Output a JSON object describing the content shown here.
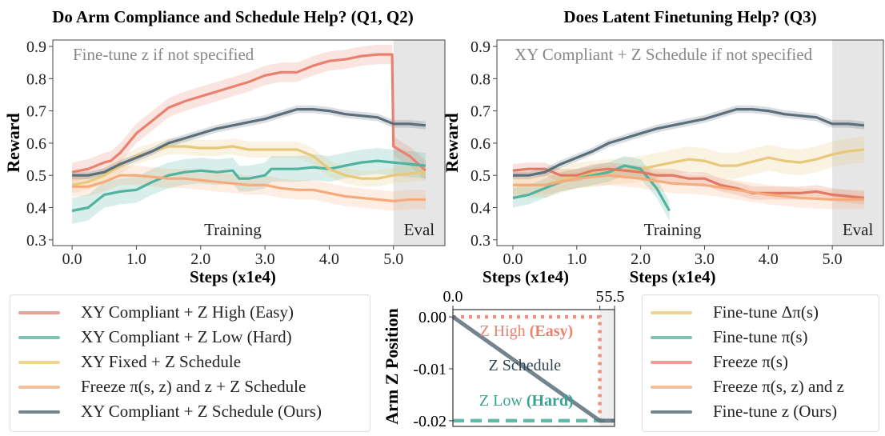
{
  "chart_data": [
    {
      "type": "line",
      "title": "Do Arm Compliance and Schedule Help? (Q1, Q2)",
      "xlabel": "Steps (x1e4)",
      "ylabel": "Reward",
      "xlim": [
        -0.3,
        5.8
      ],
      "ylim": [
        0.23,
        0.92
      ],
      "xticks": [
        "0.0",
        "1.0",
        "2.0",
        "3.0",
        "4.0",
        "5.0"
      ],
      "yticks": [
        "0.3",
        "0.4",
        "0.5",
        "0.6",
        "0.7",
        "0.8",
        "0.9"
      ],
      "annotation": "Fine-tune z if not specified",
      "region_labels": {
        "training": "Training",
        "eval": "Eval"
      },
      "eval_region": [
        5.0,
        5.8
      ],
      "grid": false,
      "series": [
        {
          "name": "XY Compliant + Z High (Easy)",
          "color": "#e8826f",
          "band": 0.03,
          "x": [
            0,
            0.25,
            0.5,
            0.6,
            0.75,
            1.0,
            1.25,
            1.5,
            1.75,
            2.0,
            2.25,
            2.5,
            2.75,
            3.0,
            3.25,
            3.5,
            3.75,
            4.0,
            4.25,
            4.5,
            4.75,
            4.98,
            5.0,
            5.25,
            5.5
          ],
          "y": [
            0.51,
            0.52,
            0.54,
            0.545,
            0.57,
            0.63,
            0.67,
            0.71,
            0.73,
            0.745,
            0.76,
            0.775,
            0.79,
            0.81,
            0.82,
            0.82,
            0.84,
            0.855,
            0.86,
            0.87,
            0.875,
            0.875,
            0.59,
            0.56,
            0.515
          ]
        },
        {
          "name": "XY Compliant + Z Low (Hard)",
          "color": "#4fb3a0",
          "band": 0.04,
          "x": [
            0,
            0.25,
            0.5,
            0.75,
            1.0,
            1.25,
            1.5,
            1.75,
            2.0,
            2.25,
            2.5,
            2.6,
            2.75,
            3.0,
            3.1,
            3.5,
            3.75,
            4.0,
            4.25,
            4.5,
            4.75,
            5.0,
            5.25,
            5.5
          ],
          "y": [
            0.39,
            0.4,
            0.44,
            0.45,
            0.455,
            0.48,
            0.5,
            0.51,
            0.515,
            0.51,
            0.515,
            0.49,
            0.49,
            0.5,
            0.52,
            0.52,
            0.525,
            0.52,
            0.53,
            0.54,
            0.545,
            0.54,
            0.535,
            0.53
          ]
        },
        {
          "name": "XY Fixed + Z Schedule",
          "color": "#e8c97c",
          "band": 0.025,
          "x": [
            0,
            0.25,
            0.5,
            0.75,
            1.0,
            1.25,
            1.5,
            1.75,
            2.0,
            2.25,
            2.5,
            2.75,
            3.0,
            3.25,
            3.5,
            3.75,
            4.0,
            4.25,
            4.5,
            4.75,
            5.0,
            5.25,
            5.5
          ],
          "y": [
            0.47,
            0.48,
            0.5,
            0.53,
            0.56,
            0.575,
            0.59,
            0.59,
            0.585,
            0.585,
            0.59,
            0.58,
            0.58,
            0.58,
            0.58,
            0.56,
            0.52,
            0.5,
            0.49,
            0.49,
            0.5,
            0.505,
            0.51
          ]
        },
        {
          "name": "Freeze π(s, z) and z + Z Schedule",
          "color": "#f5ab7c",
          "band": 0.03,
          "x": [
            0,
            0.25,
            0.5,
            0.75,
            1.0,
            1.25,
            1.5,
            1.75,
            2.0,
            2.25,
            2.5,
            2.75,
            3.0,
            3.25,
            3.5,
            3.75,
            4.0,
            4.25,
            4.5,
            4.75,
            5.0,
            5.25,
            5.5
          ],
          "y": [
            0.465,
            0.465,
            0.48,
            0.5,
            0.5,
            0.495,
            0.49,
            0.49,
            0.485,
            0.48,
            0.475,
            0.47,
            0.47,
            0.46,
            0.455,
            0.455,
            0.445,
            0.435,
            0.43,
            0.425,
            0.42,
            0.425,
            0.425
          ]
        },
        {
          "name": "XY Compliant + Z Schedule (Ours)",
          "color": "#5b6f7a",
          "band": 0.012,
          "x": [
            0,
            0.25,
            0.5,
            0.75,
            1.0,
            1.25,
            1.5,
            1.75,
            2.0,
            2.25,
            2.5,
            2.75,
            3.0,
            3.25,
            3.5,
            3.75,
            4.0,
            4.25,
            4.5,
            4.75,
            5.0,
            5.25,
            5.5
          ],
          "y": [
            0.5,
            0.5,
            0.51,
            0.535,
            0.555,
            0.575,
            0.6,
            0.615,
            0.63,
            0.645,
            0.655,
            0.665,
            0.675,
            0.69,
            0.705,
            0.705,
            0.7,
            0.69,
            0.685,
            0.68,
            0.66,
            0.66,
            0.655
          ]
        }
      ]
    },
    {
      "type": "line",
      "title": "Does Latent Finetuning Help? (Q3)",
      "xlabel": "Steps (x1e4)",
      "ylabel": "Reward",
      "xlim": [
        -0.25,
        5.8
      ],
      "ylim": [
        0.23,
        0.92
      ],
      "xticks": [
        "0.0",
        "1.0",
        "2.0",
        "3.0",
        "4.0",
        "5.0"
      ],
      "yticks": [
        "0.3",
        "0.4",
        "0.5",
        "0.6",
        "0.7",
        "0.8",
        "0.9"
      ],
      "annotation": "XY Compliant + Z Schedule if not specified",
      "region_labels": {
        "training": "Training",
        "eval": "Eval"
      },
      "eval_region": [
        5.0,
        5.8
      ],
      "grid": false,
      "series": [
        {
          "name": "Fine-tune Δπ(s)",
          "color": "#e8c97c",
          "band": 0.04,
          "x": [
            0,
            0.5,
            1.0,
            1.5,
            2.0,
            2.5,
            2.75,
            3.0,
            3.25,
            3.5,
            4.0,
            4.25,
            4.5,
            4.75,
            5.0,
            5.25,
            5.5
          ],
          "y": [
            0.47,
            0.47,
            0.5,
            0.51,
            0.52,
            0.54,
            0.55,
            0.545,
            0.53,
            0.53,
            0.555,
            0.545,
            0.54,
            0.55,
            0.565,
            0.575,
            0.58
          ]
        },
        {
          "name": "Fine-tune π(s)",
          "color": "#4fb3a0",
          "band": 0.03,
          "x": [
            0,
            0.25,
            0.5,
            0.75,
            1.0,
            1.25,
            1.5,
            1.75,
            2.0,
            2.25,
            2.45
          ],
          "y": [
            0.43,
            0.44,
            0.46,
            0.48,
            0.49,
            0.5,
            0.51,
            0.53,
            0.52,
            0.46,
            0.39
          ]
        },
        {
          "name": "Freeze π(s)",
          "color": "#e07a64",
          "band": 0.02,
          "x": [
            0,
            0.25,
            0.5,
            0.75,
            1.0,
            1.25,
            1.5,
            1.75,
            2.0,
            2.25,
            2.5,
            2.75,
            3.0,
            3.25,
            3.5,
            3.75,
            4.0,
            4.25,
            4.5,
            4.75,
            5.0,
            5.25,
            5.5
          ],
          "y": [
            0.515,
            0.52,
            0.52,
            0.5,
            0.5,
            0.515,
            0.52,
            0.515,
            0.51,
            0.5,
            0.5,
            0.49,
            0.49,
            0.47,
            0.46,
            0.445,
            0.445,
            0.445,
            0.445,
            0.45,
            0.44,
            0.435,
            0.43
          ]
        },
        {
          "name": "Freeze π(s, z) and z",
          "color": "#f5ab7c",
          "band": 0.03,
          "x": [
            0,
            0.5,
            1.0,
            1.5,
            2.0,
            2.5,
            3.0,
            3.5,
            4.0,
            4.5,
            5.0,
            5.25,
            5.5
          ],
          "y": [
            0.47,
            0.47,
            0.49,
            0.5,
            0.49,
            0.475,
            0.47,
            0.455,
            0.44,
            0.43,
            0.425,
            0.425,
            0.425
          ]
        },
        {
          "name": "Fine-tune z (Ours)",
          "color": "#5b6f7a",
          "band": 0.012,
          "x": [
            0,
            0.25,
            0.5,
            0.75,
            1.0,
            1.25,
            1.5,
            1.75,
            2.0,
            2.25,
            2.5,
            2.75,
            3.0,
            3.25,
            3.5,
            3.75,
            4.0,
            4.25,
            4.5,
            4.75,
            5.0,
            5.25,
            5.5
          ],
          "y": [
            0.5,
            0.5,
            0.51,
            0.535,
            0.555,
            0.575,
            0.6,
            0.615,
            0.63,
            0.645,
            0.655,
            0.665,
            0.675,
            0.69,
            0.705,
            0.705,
            0.7,
            0.69,
            0.685,
            0.68,
            0.66,
            0.66,
            0.655
          ]
        }
      ]
    },
    {
      "type": "line",
      "title": "",
      "xlabel": "Steps (x1e4)",
      "ylabel": "Arm Z Position",
      "xlim": [
        0,
        5.5
      ],
      "ylim": [
        -0.0211,
        0.0014
      ],
      "xticks": [
        "0.0",
        "5",
        "5.5"
      ],
      "xtick_values": [
        0,
        5,
        5.5
      ],
      "yticks": [
        "0.00",
        "-0.01",
        "-0.02"
      ],
      "ytick_values": [
        0,
        -0.01,
        -0.02
      ],
      "eval_region": [
        5.0,
        5.5
      ],
      "grid": false,
      "series": [
        {
          "name": "Z High (Easy)",
          "color": "#e8927f",
          "style": "dotted",
          "x": [
            0,
            5,
            5
          ],
          "y": [
            0,
            0,
            -0.02
          ]
        },
        {
          "name": "Z Low (Hard)",
          "color": "#5fbaa6",
          "style": "dashed",
          "x": [
            0,
            5.5
          ],
          "y": [
            -0.02,
            -0.02
          ]
        },
        {
          "name": "Z Schedule",
          "color": "#5b6f7a",
          "style": "solid",
          "x": [
            0,
            5,
            5.5
          ],
          "y": [
            0,
            -0.02,
            -0.02
          ]
        }
      ],
      "labels": [
        {
          "text": "Z High ",
          "bold": "(Easy)",
          "color": "#e8826f"
        },
        {
          "text": "Z Schedule",
          "bold": "",
          "color": "#2f4450"
        },
        {
          "text": "Z Low ",
          "bold": "(Hard)",
          "color": "#3aa38f"
        }
      ]
    }
  ],
  "legends": {
    "left": [
      {
        "label": "XY Compliant + Z High (Easy)",
        "color": "#e8a096"
      },
      {
        "label": "XY Compliant + Z Low (Hard)",
        "color": "#7cc4b4"
      },
      {
        "label": "XY Fixed + Z Schedule",
        "color": "#ecd690"
      },
      {
        "label": "Freeze π(s, z) and z + Z Schedule",
        "color": "#f3c09e"
      },
      {
        "label": "XY Compliant + Z Schedule (Ours)",
        "color": "#75858d"
      }
    ],
    "right": [
      {
        "label": "Fine-tune Δπ(s)",
        "color": "#ecd690"
      },
      {
        "label": "Fine-tune π(s)",
        "color": "#7cc4b4"
      },
      {
        "label": "Freeze π(s)",
        "color": "#e8a096"
      },
      {
        "label": "Freeze π(s, z) and z",
        "color": "#f3c09e"
      },
      {
        "label": "Fine-tune z (Ours)",
        "color": "#75858d"
      }
    ]
  }
}
